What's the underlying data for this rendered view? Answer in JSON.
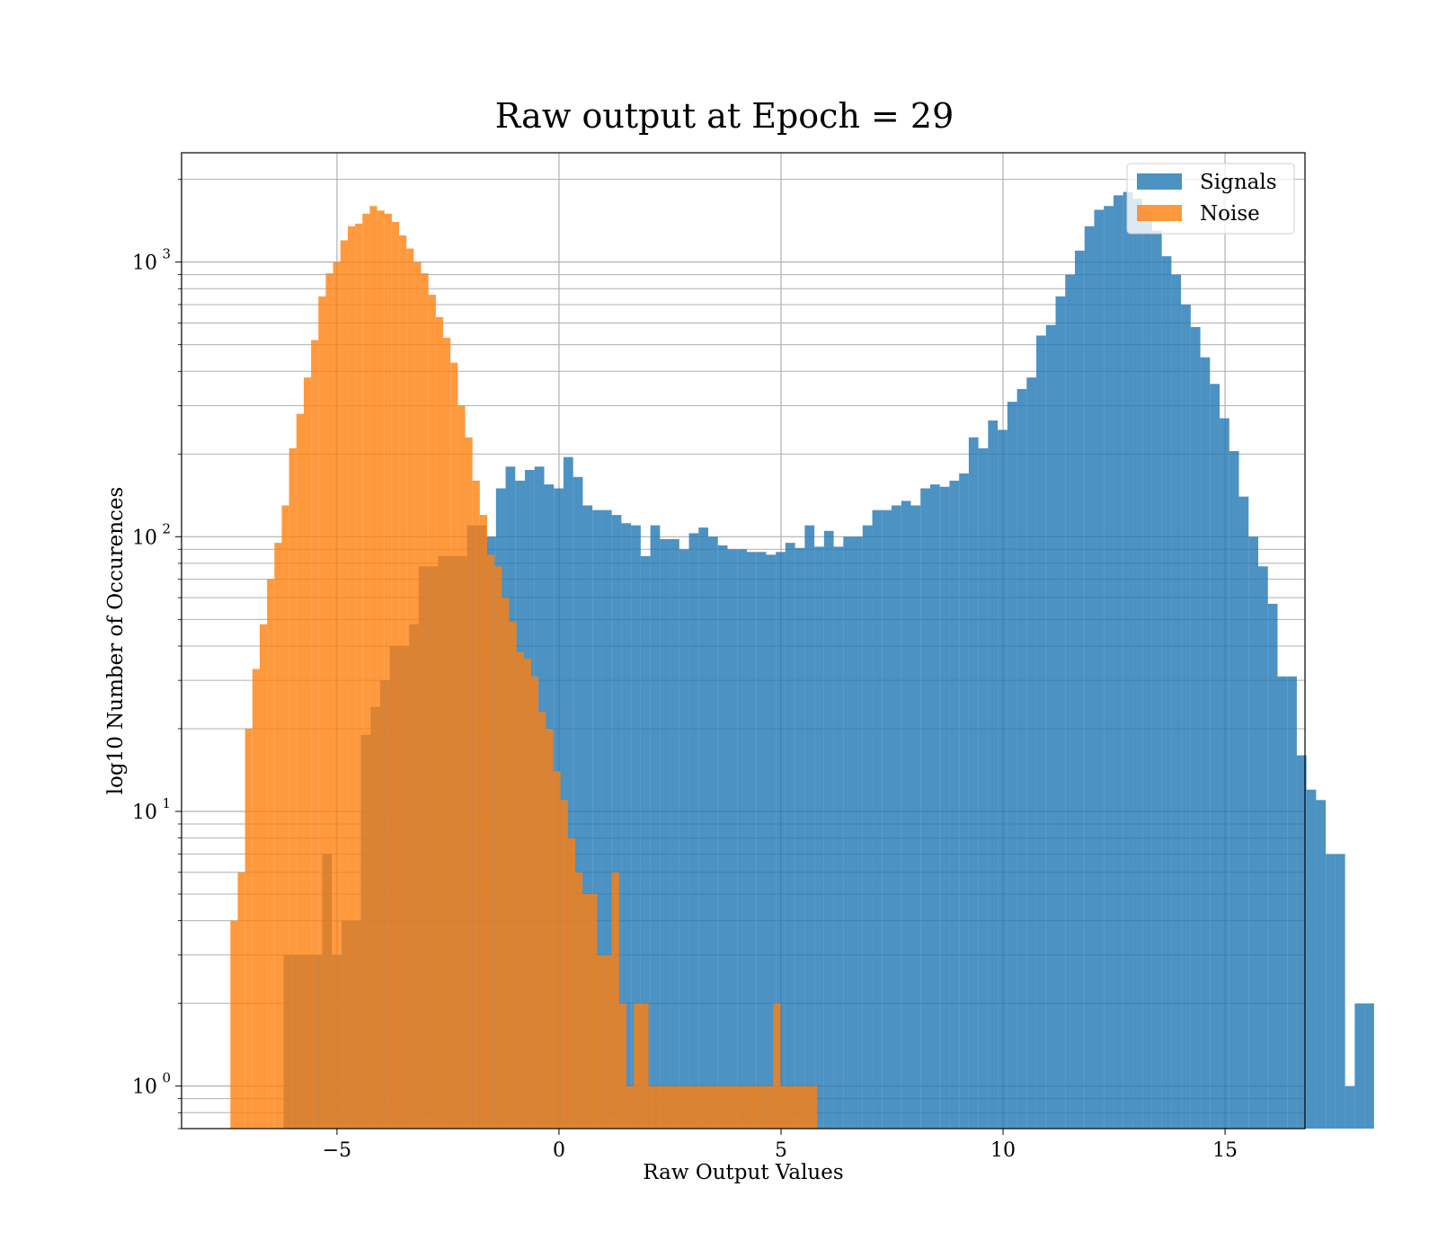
{
  "chart_data": {
    "type": "bar",
    "title": "Raw output at Epoch = 29",
    "xlabel": "Raw Output Values",
    "ylabel": "log10 Number of Occurences",
    "xlim": [
      -8.5,
      16.8
    ],
    "ylim": [
      0.7,
      2500
    ],
    "yscale": "log",
    "grid": true,
    "grid_minor": true,
    "legend_position": "top-right",
    "x_ticks": [
      {
        "value": -5,
        "label": "−5"
      },
      {
        "value": 0,
        "label": "0"
      },
      {
        "value": 5,
        "label": "5"
      },
      {
        "value": 10,
        "label": "10"
      },
      {
        "value": 15,
        "label": "15"
      }
    ],
    "y_ticks": [
      {
        "value": 1,
        "base": "10",
        "exp": "0"
      },
      {
        "value": 10,
        "base": "10",
        "exp": "1"
      },
      {
        "value": 100,
        "base": "10",
        "exp": "2"
      },
      {
        "value": 1000,
        "base": "10",
        "exp": "3"
      }
    ],
    "series": [
      {
        "name": "Signals",
        "color": "#1f77b4",
        "opacity": 0.8,
        "bin_start": -6.2,
        "bin_width": 0.2173,
        "counts": [
          3,
          3,
          3,
          3,
          7,
          3,
          4,
          4,
          19,
          24,
          30,
          40,
          40,
          48,
          78,
          78,
          85,
          85,
          85,
          110,
          110,
          100,
          150,
          180,
          160,
          175,
          180,
          155,
          150,
          195,
          165,
          130,
          125,
          125,
          120,
          112,
          110,
          85,
          110,
          98,
          98,
          90,
          103,
          108,
          100,
          93,
          90,
          90,
          88,
          88,
          86,
          88,
          95,
          91,
          110,
          92,
          105,
          92,
          100,
          100,
          110,
          125,
          125,
          130,
          135,
          130,
          150,
          155,
          152,
          160,
          170,
          230,
          210,
          265,
          245,
          310,
          345,
          380,
          540,
          590,
          750,
          900,
          1100,
          1350,
          1550,
          1600,
          1750,
          1800,
          1700,
          1550,
          1300,
          1050,
          900,
          700,
          580,
          450,
          360,
          270,
          205,
          140,
          100,
          78,
          57,
          31,
          31,
          16,
          12,
          11,
          7,
          7,
          1,
          2,
          2
        ]
      },
      {
        "name": "Noise",
        "color": "#ff7f0e",
        "opacity": 0.8,
        "bin_start": -7.4,
        "bin_width": 0.1652,
        "counts": [
          4,
          6,
          20,
          33,
          48,
          70,
          95,
          130,
          210,
          280,
          380,
          520,
          750,
          910,
          1000,
          1200,
          1350,
          1380,
          1500,
          1600,
          1540,
          1500,
          1400,
          1250,
          1120,
          1000,
          910,
          760,
          630,
          530,
          430,
          300,
          230,
          160,
          120,
          86,
          78,
          60,
          49,
          38,
          36,
          31,
          23,
          20,
          14,
          11,
          8,
          6,
          5,
          5,
          3,
          3,
          6,
          2,
          1,
          2,
          2,
          1,
          1,
          1,
          1,
          1,
          1,
          1,
          1,
          1,
          1,
          1,
          1,
          1,
          1,
          1,
          1,
          1,
          2,
          1,
          1,
          1,
          1,
          1
        ]
      }
    ]
  }
}
